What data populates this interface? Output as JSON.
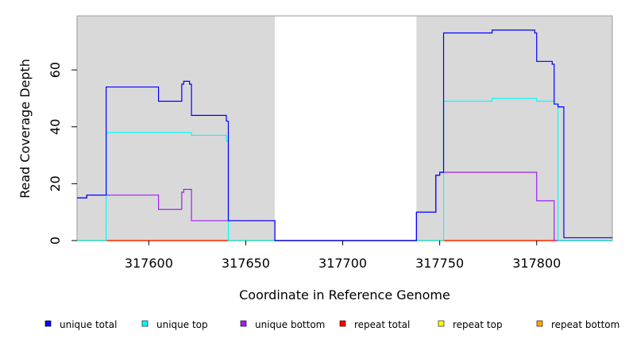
{
  "chart_data": {
    "type": "line",
    "step": true,
    "title": "",
    "xlabel": "Coordinate in Reference Genome",
    "ylabel": "Read Coverage Depth",
    "xlim": [
      317563,
      317839
    ],
    "ylim": [
      0,
      79
    ],
    "xticks": [
      317600,
      317650,
      317700,
      317750,
      317800
    ],
    "yticks": [
      0,
      20,
      40,
      60
    ],
    "grid": false,
    "legend_position": "bottom",
    "shaded_regions": [
      {
        "x_start": 317563,
        "x_end": 317665,
        "color": "#d9d9d9"
      },
      {
        "x_start": 317738,
        "x_end": 317839,
        "color": "#d9d9d9"
      }
    ],
    "series": [
      {
        "name": "unique total",
        "color": "#0000ff",
        "points": [
          [
            317563,
            15
          ],
          [
            317568,
            16
          ],
          [
            317578,
            54
          ],
          [
            317605,
            49
          ],
          [
            317617,
            55
          ],
          [
            317618,
            56
          ],
          [
            317621,
            55
          ],
          [
            317622,
            44
          ],
          [
            317640,
            42
          ],
          [
            317641,
            7
          ],
          [
            317665,
            0
          ],
          [
            317738,
            10
          ],
          [
            317748,
            23
          ],
          [
            317750,
            24
          ],
          [
            317752,
            73
          ],
          [
            317777,
            74
          ],
          [
            317799,
            73
          ],
          [
            317800,
            63
          ],
          [
            317808,
            62
          ],
          [
            317809,
            48
          ],
          [
            317811,
            47
          ],
          [
            317814,
            1
          ],
          [
            317839,
            1
          ]
        ]
      },
      {
        "name": "unique top",
        "color": "#00ffff",
        "points": [
          [
            317563,
            0
          ],
          [
            317578,
            38
          ],
          [
            317622,
            37
          ],
          [
            317640,
            35
          ],
          [
            317641,
            0
          ],
          [
            317752,
            49
          ],
          [
            317777,
            50
          ],
          [
            317800,
            49
          ],
          [
            317809,
            48
          ],
          [
            317811,
            0
          ],
          [
            317839,
            0
          ]
        ]
      },
      {
        "name": "unique bottom",
        "color": "#a020f0",
        "points": [
          [
            317563,
            15
          ],
          [
            317568,
            16
          ],
          [
            317605,
            11
          ],
          [
            317617,
            17
          ],
          [
            317618,
            18
          ],
          [
            317622,
            7
          ],
          [
            317665,
            0
          ],
          [
            317738,
            10
          ],
          [
            317748,
            23
          ],
          [
            317750,
            24
          ],
          [
            317800,
            14
          ],
          [
            317809,
            0
          ],
          [
            317839,
            0
          ]
        ]
      },
      {
        "name": "repeat total",
        "color": "#ff0000",
        "points": [
          [
            317563,
            0
          ],
          [
            317839,
            0
          ]
        ]
      },
      {
        "name": "repeat top",
        "color": "#ffff00",
        "points": [
          [
            317563,
            0
          ],
          [
            317839,
            0
          ]
        ]
      },
      {
        "name": "repeat bottom",
        "color": "#ffa500",
        "points": [
          [
            317563,
            0
          ],
          [
            317839,
            0
          ]
        ]
      }
    ]
  }
}
